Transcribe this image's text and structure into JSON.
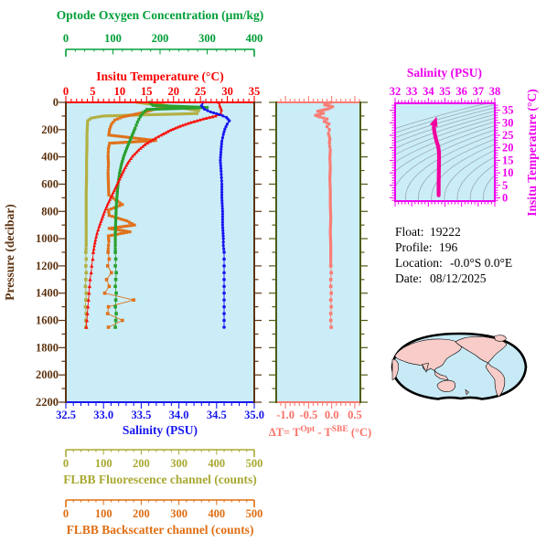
{
  "info": {
    "float_label": "Float:",
    "float_value": "19222",
    "profile_label": "Profile:",
    "profile_value": "196",
    "location_label": "Location:",
    "location_value": "-0.0°S   0.0°E",
    "date_label": "Date:",
    "date_value": "08/12/2025"
  },
  "colors": {
    "plot_background": "#CBEDF8",
    "temperature": "#F8130E",
    "salinity": "#1717F0",
    "oxygen": "#2AA12E",
    "fluorescence": "#B2B042",
    "backscatter": "#E0711A",
    "pressure_axis": "#5C3310",
    "delta_t": "#F97C74",
    "delta_frame": "#4C5C14",
    "ts_line": "#F2009E",
    "ts_frame": "#EE00EE",
    "contour": "#97ABB4",
    "map_ocean": "#C7EAF6",
    "map_land": "#F8CCC8"
  },
  "axes": {
    "oxygen": {
      "title": "Optode Oxygen Concentration (µm/kg)",
      "ticks": [
        "0",
        "100",
        "200",
        "300",
        "400"
      ],
      "min": 0,
      "max": 400
    },
    "temperature": {
      "title": "Insitu Temperature (°C)",
      "ticks": [
        "0",
        "5",
        "10",
        "15",
        "20",
        "25",
        "30",
        "35"
      ],
      "min": 0,
      "max": 35
    },
    "salinity": {
      "title": "Salinity (PSU)",
      "ticks": [
        "32.5",
        "33.0",
        "33.5",
        "34.0",
        "34.5",
        "35.0"
      ],
      "min": 32.5,
      "max": 35.0
    },
    "fluorescence": {
      "title": "FLBB Fluorescence channel (counts)",
      "ticks": [
        "0",
        "100",
        "200",
        "300",
        "400",
        "500"
      ],
      "min": 0,
      "max": 500
    },
    "backscatter": {
      "title": "FLBB Backscatter channel (counts)",
      "ticks": [
        "0",
        "100",
        "200",
        "300",
        "400",
        "500"
      ],
      "min": 0,
      "max": 500
    },
    "pressure": {
      "title": "Pressure (decibar)",
      "ticks": [
        "0",
        "200",
        "400",
        "600",
        "800",
        "1000",
        "1200",
        "1400",
        "1600",
        "1800",
        "2000",
        "2200"
      ],
      "min": 0,
      "max": 2200
    },
    "delta_t": {
      "ticks": [
        "-1.0",
        "-0.5",
        "0.0",
        "0.5"
      ],
      "tick_values": [
        -1.0,
        -0.5,
        0.0,
        0.5
      ],
      "label_parts": [
        "ΔT= T",
        "Opt",
        " - T",
        "SBE",
        " (°C)"
      ]
    },
    "ts_salinity": {
      "title": "Salinity (PSU)",
      "ticks": [
        "32",
        "33",
        "34",
        "35",
        "36",
        "37",
        "38"
      ],
      "min": 32,
      "max": 38
    },
    "ts_temperature": {
      "title": "Insitu Temperature (°C)",
      "ticks": [
        "0",
        "5",
        "10",
        "15",
        "20",
        "25",
        "30",
        "35"
      ],
      "min": 0,
      "max": 35
    }
  },
  "chart_data": [
    {
      "type": "line",
      "title": "pressure-profiles",
      "ylabel": "Pressure (decibar)",
      "ylim": [
        0,
        2200
      ],
      "series": [
        {
          "name": "FLBB Fluorescence channel",
          "axis": "fluorescence",
          "marker": "square",
          "dense_until": 1050,
          "points": [
            [
              190,
              0
            ],
            [
              250,
              22
            ],
            [
              310,
              42
            ],
            [
              352,
              62
            ],
            [
              348,
              82
            ],
            [
              205,
              92
            ],
            [
              100,
              100
            ],
            [
              68,
              115
            ],
            [
              58,
              135
            ],
            [
              57,
              175
            ],
            [
              56,
              240
            ],
            [
              56,
              320
            ],
            [
              55,
              420
            ],
            [
              55,
              540
            ],
            [
              54,
              660
            ],
            [
              54,
              780
            ],
            [
              54,
              900
            ],
            [
              54,
              1010
            ],
            [
              54,
              1050
            ],
            [
              53,
              1100
            ],
            [
              54,
              1150
            ],
            [
              53,
              1200
            ],
            [
              54,
              1250
            ],
            [
              53,
              1300
            ],
            [
              52,
              1350
            ],
            [
              54,
              1400
            ],
            [
              53,
              1450
            ],
            [
              52,
              1500
            ],
            [
              54,
              1550
            ],
            [
              53,
              1600
            ],
            [
              53,
              1650
            ]
          ]
        },
        {
          "name": "FLBB Backscatter channel",
          "axis": "backscatter",
          "marker": "square",
          "dense_until": 1050,
          "points": [
            [
              235,
              5
            ],
            [
              268,
              25
            ],
            [
              242,
              45
            ],
            [
              218,
              65
            ],
            [
              188,
              85
            ],
            [
              152,
              105
            ],
            [
              130,
              130
            ],
            [
              121,
              160
            ],
            [
              116,
              200
            ],
            [
              114,
              240
            ],
            [
              238,
              280
            ],
            [
              116,
              300
            ],
            [
              113,
              340
            ],
            [
              112,
              390
            ],
            [
              113,
              450
            ],
            [
              112,
              520
            ],
            [
              113,
              600
            ],
            [
              114,
              680
            ],
            [
              150,
              750
            ],
            [
              113,
              790
            ],
            [
              115,
              830
            ],
            [
              162,
              870
            ],
            [
              182,
              900
            ],
            [
              115,
              925
            ],
            [
              170,
              950
            ],
            [
              113,
              980
            ],
            [
              114,
              1020
            ],
            [
              113,
              1050
            ],
            [
              112,
              1100
            ],
            [
              115,
              1150
            ],
            [
              111,
              1200
            ],
            [
              121,
              1250
            ],
            [
              108,
              1300
            ],
            [
              115,
              1350
            ],
            [
              103,
              1400
            ],
            [
              180,
              1450
            ],
            [
              113,
              1500
            ],
            [
              111,
              1550
            ],
            [
              150,
              1600
            ],
            [
              113,
              1650
            ]
          ]
        },
        {
          "name": "Optode Oxygen Concentration",
          "axis": "oxygen",
          "marker": "square",
          "dense_until": 1050,
          "points": [
            [
              178,
              0
            ],
            [
              185,
              22
            ],
            [
              300,
              38
            ],
            [
              172,
              52
            ],
            [
              164,
              75
            ],
            [
              158,
              105
            ],
            [
              152,
              145
            ],
            [
              147,
              190
            ],
            [
              141,
              240
            ],
            [
              135,
              290
            ],
            [
              129,
              340
            ],
            [
              123,
              395
            ],
            [
              118,
              455
            ],
            [
              114,
              520
            ],
            [
              111,
              590
            ],
            [
              109,
              670
            ],
            [
              107,
              760
            ],
            [
              106,
              860
            ],
            [
              105,
              960
            ],
            [
              105,
              1050
            ],
            [
              105,
              1100
            ],
            [
              106,
              1150
            ],
            [
              105,
              1200
            ],
            [
              107,
              1250
            ],
            [
              106,
              1300
            ],
            [
              105,
              1350
            ],
            [
              107,
              1400
            ],
            [
              106,
              1450
            ],
            [
              105,
              1500
            ],
            [
              107,
              1550
            ],
            [
              106,
              1600
            ],
            [
              105,
              1650
            ]
          ]
        },
        {
          "name": "Insitu Temperature",
          "axis": "temperature",
          "marker": "triangle",
          "dense_until": 1050,
          "points": [
            [
              28.4,
              0
            ],
            [
              28.6,
              25
            ],
            [
              28.9,
              55
            ],
            [
              28.8,
              80
            ],
            [
              27.8,
              100
            ],
            [
              25.5,
              122
            ],
            [
              23.2,
              148
            ],
            [
              21.2,
              175
            ],
            [
              19.4,
              205
            ],
            [
              17.7,
              240
            ],
            [
              16.1,
              275
            ],
            [
              14.7,
              310
            ],
            [
              13.5,
              350
            ],
            [
              12.4,
              395
            ],
            [
              11.5,
              445
            ],
            [
              10.8,
              495
            ],
            [
              10.2,
              545
            ],
            [
              9.6,
              595
            ],
            [
              9.0,
              645
            ],
            [
              8.4,
              695
            ],
            [
              7.8,
              745
            ],
            [
              7.2,
              800
            ],
            [
              6.7,
              855
            ],
            [
              6.2,
              910
            ],
            [
              5.8,
              960
            ],
            [
              5.5,
              1010
            ],
            [
              5.3,
              1050
            ],
            [
              5.1,
              1100
            ],
            [
              5.0,
              1150
            ],
            [
              4.8,
              1200
            ],
            [
              4.7,
              1250
            ],
            [
              4.5,
              1300
            ],
            [
              4.4,
              1350
            ],
            [
              4.3,
              1400
            ],
            [
              4.2,
              1450
            ],
            [
              4.1,
              1500
            ],
            [
              4.0,
              1550
            ],
            [
              3.9,
              1600
            ],
            [
              3.8,
              1650
            ]
          ]
        },
        {
          "name": "Salinity",
          "axis": "salinity",
          "marker": "circle",
          "dense_until": 1050,
          "points": [
            [
              34.32,
              0
            ],
            [
              34.3,
              25
            ],
            [
              34.34,
              50
            ],
            [
              34.42,
              70
            ],
            [
              34.54,
              90
            ],
            [
              34.63,
              110
            ],
            [
              34.67,
              135
            ],
            [
              34.64,
              160
            ],
            [
              34.61,
              195
            ],
            [
              34.59,
              235
            ],
            [
              34.57,
              285
            ],
            [
              34.56,
              345
            ],
            [
              34.55,
              425
            ],
            [
              34.56,
              505
            ],
            [
              34.57,
              600
            ],
            [
              34.57,
              700
            ],
            [
              34.58,
              800
            ],
            [
              34.58,
              900
            ],
            [
              34.59,
              1000
            ],
            [
              34.59,
              1050
            ],
            [
              34.6,
              1100
            ],
            [
              34.6,
              1150
            ],
            [
              34.6,
              1200
            ],
            [
              34.6,
              1250
            ],
            [
              34.6,
              1300
            ],
            [
              34.6,
              1350
            ],
            [
              34.6,
              1400
            ],
            [
              34.6,
              1450
            ],
            [
              34.6,
              1500
            ],
            [
              34.6,
              1550
            ],
            [
              34.6,
              1600
            ],
            [
              34.6,
              1650
            ]
          ]
        }
      ]
    },
    {
      "type": "line",
      "title": "delta-temperature-profile",
      "xlabel": "ΔT= T^Opt - T^SBE (°C)",
      "xlim": [
        -1.2,
        0.62
      ],
      "ylim": [
        0,
        2200
      ],
      "series": [
        {
          "name": "deltaT",
          "marker": "square",
          "dense_until": 1150,
          "points": [
            [
              -0.02,
              0
            ],
            [
              -0.15,
              18
            ],
            [
              0.02,
              32
            ],
            [
              -0.08,
              48
            ],
            [
              -0.3,
              65
            ],
            [
              -0.18,
              80
            ],
            [
              -0.35,
              95
            ],
            [
              -0.25,
              108
            ],
            [
              -0.1,
              122
            ],
            [
              -0.16,
              140
            ],
            [
              -0.06,
              158
            ],
            [
              -0.1,
              178
            ],
            [
              -0.05,
              200
            ],
            [
              -0.07,
              230
            ],
            [
              -0.04,
              265
            ],
            [
              -0.05,
              300
            ],
            [
              -0.03,
              350
            ],
            [
              -0.04,
              410
            ],
            [
              -0.03,
              480
            ],
            [
              -0.04,
              560
            ],
            [
              -0.03,
              650
            ],
            [
              -0.03,
              750
            ],
            [
              -0.02,
              850
            ],
            [
              -0.03,
              950
            ],
            [
              -0.02,
              1050
            ],
            [
              -0.02,
              1150
            ],
            [
              -0.02,
              1200
            ],
            [
              -0.01,
              1250
            ],
            [
              -0.02,
              1300
            ],
            [
              -0.02,
              1350
            ],
            [
              -0.01,
              1400
            ],
            [
              -0.02,
              1450
            ],
            [
              -0.01,
              1500
            ],
            [
              -0.02,
              1550
            ],
            [
              -0.02,
              1600
            ],
            [
              -0.01,
              1650
            ]
          ]
        }
      ]
    },
    {
      "type": "line",
      "title": "ts-diagram",
      "xlabel": "Salinity (PSU)",
      "ylabel": "Insitu Temperature (°C)",
      "xlim": [
        32,
        38
      ],
      "ylim": [
        0,
        35
      ],
      "contours": "isopycnals",
      "series": [
        {
          "name": "T-S profile",
          "points": [
            [
              34.62,
              1
            ],
            [
              34.62,
              5
            ],
            [
              34.63,
              10
            ],
            [
              34.64,
              15
            ],
            [
              34.64,
              18
            ],
            [
              34.6,
              20.5
            ],
            [
              34.5,
              22.5
            ],
            [
              34.42,
              24.5
            ],
            [
              34.36,
              26.5
            ],
            [
              34.33,
              28.3
            ],
            [
              34.38,
              29.3
            ]
          ]
        }
      ]
    }
  ]
}
